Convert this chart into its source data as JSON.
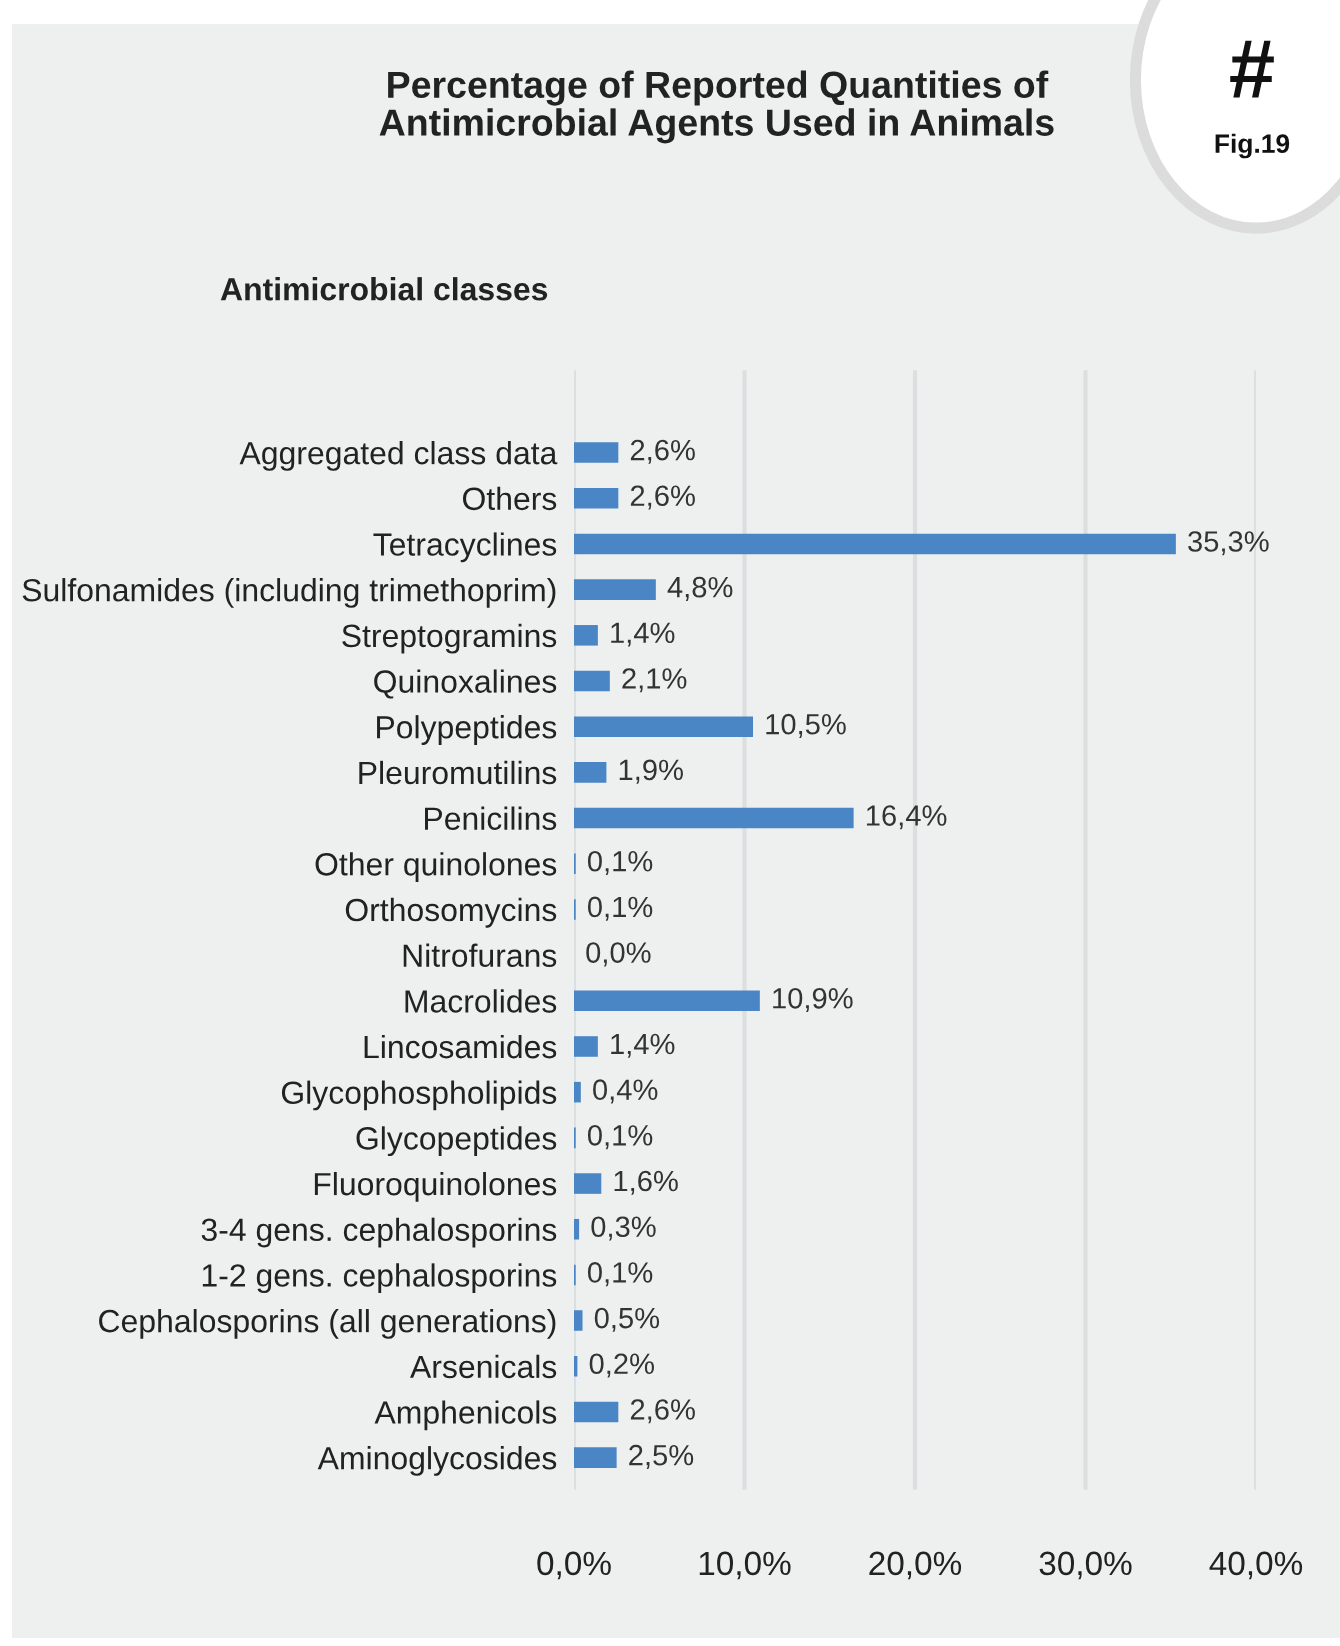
{
  "chart_data": {
    "type": "bar",
    "orientation": "horizontal",
    "title": "Percentage of Reported Quantities of\nAntimicrobial Agents Used in Animals",
    "ylabel": "Antimicrobial classes",
    "annotations": [
      "#",
      "Fig.19"
    ],
    "categories": [
      "Aggregated class data",
      "Others",
      "Tetracyclines",
      "Sulfonamides (including trimethoprim)",
      "Streptogramins",
      "Quinoxalines",
      "Polypeptides",
      "Pleuromutilins",
      "Penicilins",
      "Other quinolones",
      "Orthosomycins",
      "Nitrofurans",
      "Macrolides",
      "Lincosamides",
      "Glycophospholipids",
      "Glycopeptides",
      "Fluoroquinolones",
      "3-4 gens. cephalosporins",
      "1-2 gens. cephalosporins",
      "Cephalosporins (all generations)",
      "Arsenicals",
      "Amphenicols",
      "Aminoglycosides"
    ],
    "values": [
      2.6,
      2.6,
      35.3,
      4.8,
      1.4,
      2.1,
      10.5,
      1.9,
      16.4,
      0.1,
      0.1,
      0.0,
      10.9,
      1.4,
      0.4,
      0.1,
      1.6,
      0.3,
      0.1,
      0.5,
      0.2,
      2.6,
      2.5
    ],
    "value_labels": [
      "2,6%",
      "2,6%",
      "35,3%",
      "4,8%",
      "1,4%",
      "2,1%",
      "10,5%",
      "1,9%",
      "16,4%",
      "0,1%",
      "0,1%",
      "0,0%",
      "10,9%",
      "1,4%",
      "0,4%",
      "0,1%",
      "1,6%",
      "0,3%",
      "0,1%",
      "0,5%",
      "0,2%",
      "2,6%",
      "2,5%"
    ],
    "color": "#4a86c5",
    "xlim": [
      0,
      40
    ],
    "xticks": [
      {
        "value": 0,
        "label": "0,0%"
      },
      {
        "value": 10,
        "label": "10,0%"
      },
      {
        "value": 20,
        "label": "20,0%"
      },
      {
        "value": 30,
        "label": "30,0%"
      },
      {
        "value": 40,
        "label": "40,0%"
      }
    ],
    "grid": "x",
    "legend": false
  }
}
